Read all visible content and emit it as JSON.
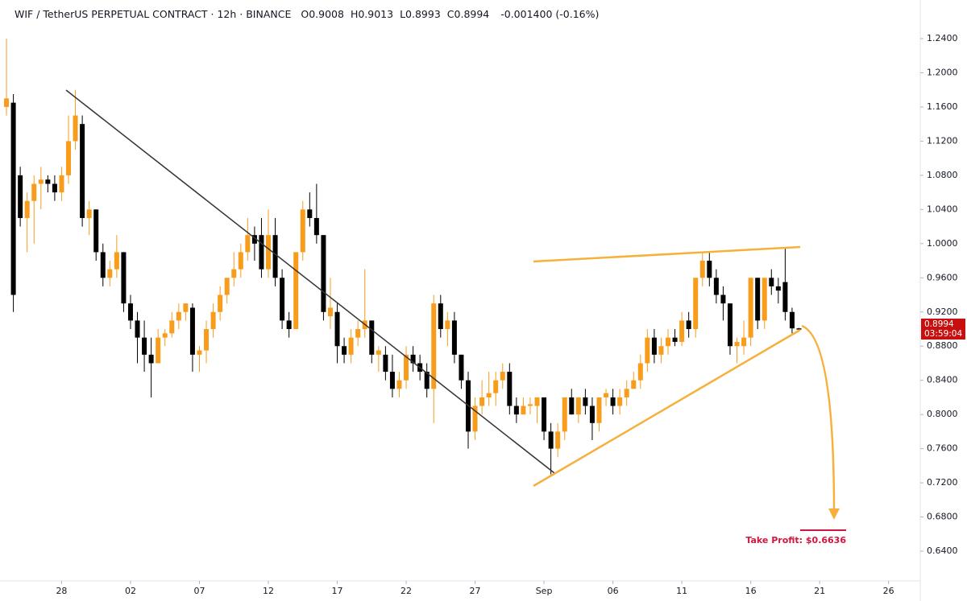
{
  "chart_data": {
    "type": "candlestick",
    "title": "WIF / TetherUS PERPETUAL CONTRACT · 12h · BINANCE",
    "ohlc_labels": [
      "O",
      "H",
      "L",
      "C"
    ],
    "change": "-0.001400 (-0.16%)",
    "countdown": "03:59:04",
    "annotation": "Take Profit: $0.6636",
    "up_color": "#f89c1c",
    "down_color": "#000000",
    "ohlc": [
      [
        1.16,
        1.24,
        1.15,
        1.17
      ],
      [
        1.165,
        1.175,
        0.92,
        0.94
      ],
      [
        1.08,
        1.09,
        1.02,
        1.03
      ],
      [
        1.03,
        1.06,
        0.99,
        1.05
      ],
      [
        1.05,
        1.08,
        1.0,
        1.07
      ],
      [
        1.07,
        1.09,
        1.04,
        1.075
      ],
      [
        1.075,
        1.08,
        1.06,
        1.07
      ],
      [
        1.07,
        1.08,
        1.05,
        1.06
      ],
      [
        1.06,
        1.09,
        1.05,
        1.08
      ],
      [
        1.08,
        1.15,
        1.07,
        1.12
      ],
      [
        1.12,
        1.18,
        1.11,
        1.15
      ],
      [
        1.14,
        1.15,
        1.02,
        1.03
      ],
      [
        1.03,
        1.05,
        1.01,
        1.04
      ],
      [
        1.04,
        1.04,
        0.98,
        0.99
      ],
      [
        0.99,
        1.0,
        0.95,
        0.96
      ],
      [
        0.96,
        0.98,
        0.95,
        0.97
      ],
      [
        0.97,
        1.01,
        0.96,
        0.99
      ],
      [
        0.99,
        0.99,
        0.92,
        0.93
      ],
      [
        0.93,
        0.94,
        0.9,
        0.91
      ],
      [
        0.91,
        0.92,
        0.86,
        0.89
      ],
      [
        0.89,
        0.91,
        0.85,
        0.87
      ],
      [
        0.87,
        0.89,
        0.82,
        0.86
      ],
      [
        0.86,
        0.9,
        0.86,
        0.89
      ],
      [
        0.89,
        0.9,
        0.88,
        0.895
      ],
      [
        0.895,
        0.92,
        0.89,
        0.91
      ],
      [
        0.91,
        0.93,
        0.9,
        0.92
      ],
      [
        0.92,
        0.93,
        0.91,
        0.93
      ],
      [
        0.925,
        0.93,
        0.85,
        0.87
      ],
      [
        0.87,
        0.88,
        0.85,
        0.875
      ],
      [
        0.875,
        0.91,
        0.86,
        0.9
      ],
      [
        0.9,
        0.93,
        0.89,
        0.92
      ],
      [
        0.92,
        0.95,
        0.91,
        0.94
      ],
      [
        0.94,
        0.96,
        0.93,
        0.96
      ],
      [
        0.96,
        0.99,
        0.95,
        0.97
      ],
      [
        0.97,
        1.0,
        0.96,
        0.99
      ],
      [
        0.99,
        1.03,
        0.98,
        1.01
      ],
      [
        1.01,
        1.02,
        0.98,
        1.0
      ],
      [
        1.01,
        1.03,
        0.96,
        0.97
      ],
      [
        0.97,
        1.04,
        0.96,
        1.01
      ],
      [
        1.01,
        1.03,
        0.95,
        0.96
      ],
      [
        0.96,
        0.97,
        0.9,
        0.91
      ],
      [
        0.91,
        0.92,
        0.89,
        0.9
      ],
      [
        0.9,
        0.99,
        0.9,
        0.99
      ],
      [
        0.99,
        1.05,
        0.98,
        1.04
      ],
      [
        1.04,
        1.06,
        1.02,
        1.03
      ],
      [
        1.03,
        1.07,
        1.0,
        1.01
      ],
      [
        1.01,
        1.01,
        0.91,
        0.92
      ],
      [
        0.915,
        0.96,
        0.9,
        0.925
      ],
      [
        0.92,
        0.93,
        0.86,
        0.88
      ],
      [
        0.88,
        0.89,
        0.86,
        0.87
      ],
      [
        0.87,
        0.9,
        0.86,
        0.89
      ],
      [
        0.89,
        0.91,
        0.88,
        0.9
      ],
      [
        0.9,
        0.97,
        0.89,
        0.91
      ],
      [
        0.91,
        0.91,
        0.86,
        0.87
      ],
      [
        0.87,
        0.88,
        0.85,
        0.875
      ],
      [
        0.87,
        0.88,
        0.84,
        0.85
      ],
      [
        0.85,
        0.87,
        0.82,
        0.83
      ],
      [
        0.83,
        0.85,
        0.82,
        0.84
      ],
      [
        0.84,
        0.88,
        0.83,
        0.87
      ],
      [
        0.87,
        0.88,
        0.85,
        0.86
      ],
      [
        0.86,
        0.87,
        0.84,
        0.85
      ],
      [
        0.85,
        0.86,
        0.82,
        0.83
      ],
      [
        0.83,
        0.94,
        0.79,
        0.93
      ],
      [
        0.93,
        0.94,
        0.89,
        0.9
      ],
      [
        0.9,
        0.92,
        0.88,
        0.91
      ],
      [
        0.91,
        0.92,
        0.86,
        0.87
      ],
      [
        0.87,
        0.87,
        0.83,
        0.84
      ],
      [
        0.84,
        0.85,
        0.76,
        0.78
      ],
      [
        0.78,
        0.82,
        0.77,
        0.81
      ],
      [
        0.81,
        0.84,
        0.8,
        0.82
      ],
      [
        0.82,
        0.85,
        0.81,
        0.825
      ],
      [
        0.825,
        0.85,
        0.81,
        0.84
      ],
      [
        0.84,
        0.86,
        0.83,
        0.85
      ],
      [
        0.85,
        0.86,
        0.8,
        0.81
      ],
      [
        0.81,
        0.82,
        0.79,
        0.8
      ],
      [
        0.8,
        0.82,
        0.8,
        0.81
      ],
      [
        0.81,
        0.82,
        0.8,
        0.812
      ],
      [
        0.81,
        0.82,
        0.79,
        0.82
      ],
      [
        0.82,
        0.82,
        0.77,
        0.78
      ],
      [
        0.78,
        0.79,
        0.73,
        0.76
      ],
      [
        0.76,
        0.79,
        0.75,
        0.78
      ],
      [
        0.78,
        0.82,
        0.77,
        0.82
      ],
      [
        0.82,
        0.83,
        0.8,
        0.8
      ],
      [
        0.8,
        0.82,
        0.79,
        0.82
      ],
      [
        0.82,
        0.83,
        0.8,
        0.81
      ],
      [
        0.81,
        0.82,
        0.77,
        0.79
      ],
      [
        0.79,
        0.82,
        0.78,
        0.82
      ],
      [
        0.82,
        0.83,
        0.81,
        0.825
      ],
      [
        0.82,
        0.83,
        0.8,
        0.81
      ],
      [
        0.81,
        0.83,
        0.8,
        0.82
      ],
      [
        0.82,
        0.84,
        0.81,
        0.83
      ],
      [
        0.83,
        0.85,
        0.83,
        0.84
      ],
      [
        0.84,
        0.87,
        0.83,
        0.86
      ],
      [
        0.86,
        0.9,
        0.85,
        0.89
      ],
      [
        0.89,
        0.9,
        0.86,
        0.87
      ],
      [
        0.87,
        0.89,
        0.86,
        0.88
      ],
      [
        0.88,
        0.9,
        0.87,
        0.89
      ],
      [
        0.89,
        0.9,
        0.88,
        0.885
      ],
      [
        0.885,
        0.92,
        0.88,
        0.91
      ],
      [
        0.91,
        0.92,
        0.89,
        0.9
      ],
      [
        0.9,
        0.96,
        0.89,
        0.96
      ],
      [
        0.96,
        0.99,
        0.95,
        0.98
      ],
      [
        0.98,
        0.99,
        0.95,
        0.96
      ],
      [
        0.96,
        0.97,
        0.93,
        0.94
      ],
      [
        0.94,
        0.95,
        0.91,
        0.93
      ],
      [
        0.93,
        0.93,
        0.87,
        0.88
      ],
      [
        0.88,
        0.89,
        0.86,
        0.885
      ],
      [
        0.88,
        0.91,
        0.87,
        0.89
      ],
      [
        0.89,
        0.96,
        0.88,
        0.96
      ],
      [
        0.96,
        0.96,
        0.9,
        0.91
      ],
      [
        0.91,
        0.96,
        0.9,
        0.96
      ],
      [
        0.96,
        0.97,
        0.94,
        0.95
      ],
      [
        0.95,
        0.96,
        0.93,
        0.945
      ],
      [
        0.955,
        0.996,
        0.91,
        0.92
      ],
      [
        0.92,
        0.925,
        0.895,
        0.9008
      ],
      [
        0.9008,
        0.9013,
        0.8993,
        0.8994
      ]
    ],
    "xlim": [
      -0.94,
      132.6
    ],
    "xticks": [
      {
        "value": 8,
        "label": "28"
      },
      {
        "value": 18,
        "label": "02"
      },
      {
        "value": 28,
        "label": "07"
      },
      {
        "value": 38,
        "label": "12"
      },
      {
        "value": 48,
        "label": "17"
      },
      {
        "value": 58,
        "label": "22"
      },
      {
        "value": 68,
        "label": "27"
      },
      {
        "value": 78,
        "label": "Sep"
      },
      {
        "value": 88,
        "label": "06"
      },
      {
        "value": 98,
        "label": "11"
      },
      {
        "value": 108,
        "label": "16"
      },
      {
        "value": 118,
        "label": "21"
      },
      {
        "value": 128,
        "label": "26"
      }
    ],
    "ylim": [
      0.6052,
      1.2852
    ],
    "yticks": [
      {
        "value": 0.64,
        "label": "0.6400"
      },
      {
        "value": 0.68,
        "label": "0.6800"
      },
      {
        "value": 0.72,
        "label": "0.7200"
      },
      {
        "value": 0.76,
        "label": "0.7600"
      },
      {
        "value": 0.8,
        "label": "0.8000"
      },
      {
        "value": 0.84,
        "label": "0.8400"
      },
      {
        "value": 0.88,
        "label": "0.8800"
      },
      {
        "value": 0.92,
        "label": "0.9200"
      },
      {
        "value": 0.96,
        "label": "0.9600"
      },
      {
        "value": 1.0,
        "label": "1.0000"
      },
      {
        "value": 1.04,
        "label": "1.0400"
      },
      {
        "value": 1.08,
        "label": "1.0800"
      },
      {
        "value": 1.12,
        "label": "1.1200"
      },
      {
        "value": 1.16,
        "label": "1.1600"
      },
      {
        "value": 1.2,
        "label": "1.2000"
      },
      {
        "value": 1.24,
        "label": "1.2400"
      }
    ]
  }
}
